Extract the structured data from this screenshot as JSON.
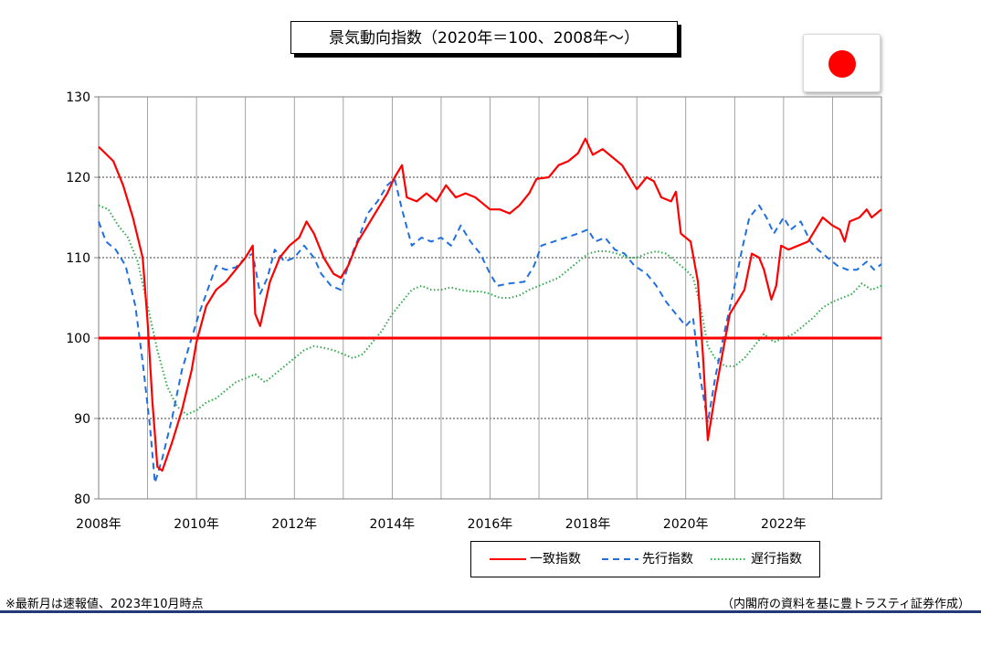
{
  "chart_data": {
    "type": "line",
    "title": "景気動向指数（2020年＝100、2008年～）",
    "xlabel": "",
    "ylabel": "",
    "ylim": [
      80,
      130
    ],
    "yticks": [
      80,
      90,
      100,
      110,
      120,
      130
    ],
    "xlim": [
      2008,
      2024
    ],
    "xticks": [
      2008,
      2010,
      2012,
      2014,
      2016,
      2018,
      2020,
      2022
    ],
    "xtick_labels": [
      "2008年",
      "2010年",
      "2012年",
      "2014年",
      "2016年",
      "2018年",
      "2020年",
      "2022年"
    ],
    "grid": "horizontal dotted at 90, 110, 120; vertical at each year",
    "reference_line": {
      "y": 100,
      "color": "#ff0000"
    },
    "legend_position": "bottom-right",
    "series": [
      {
        "name": "一致指数",
        "color": "#ff0000",
        "style": "solid",
        "points": [
          [
            2008.0,
            123.8
          ],
          [
            2008.3,
            122.0
          ],
          [
            2008.5,
            119.0
          ],
          [
            2008.7,
            115.0
          ],
          [
            2008.9,
            110.0
          ],
          [
            2009.0,
            102.0
          ],
          [
            2009.1,
            92.0
          ],
          [
            2009.2,
            84.0
          ],
          [
            2009.3,
            83.5
          ],
          [
            2009.5,
            87.0
          ],
          [
            2009.7,
            91.0
          ],
          [
            2009.9,
            96.0
          ],
          [
            2010.0,
            99.5
          ],
          [
            2010.2,
            104.0
          ],
          [
            2010.4,
            106.0
          ],
          [
            2010.6,
            107.0
          ],
          [
            2010.8,
            108.5
          ],
          [
            2011.0,
            110.0
          ],
          [
            2011.15,
            111.5
          ],
          [
            2011.2,
            103.0
          ],
          [
            2011.3,
            101.5
          ],
          [
            2011.5,
            107.0
          ],
          [
            2011.7,
            110.0
          ],
          [
            2011.9,
            111.5
          ],
          [
            2012.1,
            112.5
          ],
          [
            2012.25,
            114.5
          ],
          [
            2012.4,
            113.0
          ],
          [
            2012.6,
            110.0
          ],
          [
            2012.8,
            108.0
          ],
          [
            2012.95,
            107.5
          ],
          [
            2013.1,
            109.0
          ],
          [
            2013.3,
            112.0
          ],
          [
            2013.5,
            114.0
          ],
          [
            2013.7,
            116.0
          ],
          [
            2013.9,
            118.0
          ],
          [
            2014.05,
            120.0
          ],
          [
            2014.2,
            121.5
          ],
          [
            2014.3,
            117.5
          ],
          [
            2014.5,
            117.0
          ],
          [
            2014.7,
            118.0
          ],
          [
            2014.9,
            117.0
          ],
          [
            2015.1,
            119.0
          ],
          [
            2015.3,
            117.5
          ],
          [
            2015.5,
            118.0
          ],
          [
            2015.7,
            117.5
          ],
          [
            2015.9,
            116.5
          ],
          [
            2016.0,
            116.0
          ],
          [
            2016.2,
            116.0
          ],
          [
            2016.4,
            115.5
          ],
          [
            2016.6,
            116.5
          ],
          [
            2016.8,
            118.0
          ],
          [
            2016.95,
            119.8
          ],
          [
            2017.2,
            120.0
          ],
          [
            2017.4,
            121.5
          ],
          [
            2017.6,
            122.0
          ],
          [
            2017.8,
            123.0
          ],
          [
            2017.95,
            124.8
          ],
          [
            2018.1,
            122.8
          ],
          [
            2018.3,
            123.5
          ],
          [
            2018.5,
            122.5
          ],
          [
            2018.7,
            121.5
          ],
          [
            2018.85,
            120.0
          ],
          [
            2019.0,
            118.5
          ],
          [
            2019.2,
            120.0
          ],
          [
            2019.35,
            119.5
          ],
          [
            2019.5,
            117.5
          ],
          [
            2019.7,
            117.0
          ],
          [
            2019.8,
            118.2
          ],
          [
            2019.9,
            113.0
          ],
          [
            2020.1,
            112.0
          ],
          [
            2020.25,
            107.0
          ],
          [
            2020.35,
            98.0
          ],
          [
            2020.45,
            87.3
          ],
          [
            2020.6,
            93.0
          ],
          [
            2020.75,
            98.0
          ],
          [
            2020.9,
            103.0
          ],
          [
            2021.05,
            104.5
          ],
          [
            2021.2,
            106.0
          ],
          [
            2021.35,
            110.5
          ],
          [
            2021.5,
            110.0
          ],
          [
            2021.6,
            108.5
          ],
          [
            2021.75,
            104.8
          ],
          [
            2021.85,
            106.5
          ],
          [
            2021.95,
            111.5
          ],
          [
            2022.1,
            111.0
          ],
          [
            2022.3,
            111.5
          ],
          [
            2022.5,
            112.0
          ],
          [
            2022.65,
            113.5
          ],
          [
            2022.8,
            115.0
          ],
          [
            2023.0,
            114.0
          ],
          [
            2023.15,
            113.5
          ],
          [
            2023.25,
            112.0
          ],
          [
            2023.35,
            114.5
          ],
          [
            2023.55,
            115.0
          ],
          [
            2023.7,
            116.0
          ],
          [
            2023.8,
            115.0
          ],
          [
            2024.0,
            116.0
          ]
        ]
      },
      {
        "name": "先行指数",
        "color": "#1f6fe0",
        "style": "dashed",
        "points": [
          [
            2008.0,
            114.5
          ],
          [
            2008.15,
            112.0
          ],
          [
            2008.35,
            111.0
          ],
          [
            2008.55,
            109.0
          ],
          [
            2008.75,
            104.0
          ],
          [
            2008.9,
            97.0
          ],
          [
            2009.05,
            89.0
          ],
          [
            2009.15,
            82.0
          ],
          [
            2009.3,
            85.0
          ],
          [
            2009.5,
            90.0
          ],
          [
            2009.7,
            96.0
          ],
          [
            2009.9,
            100.0
          ],
          [
            2010.05,
            103.0
          ],
          [
            2010.2,
            105.5
          ],
          [
            2010.4,
            109.0
          ],
          [
            2010.6,
            108.5
          ],
          [
            2010.8,
            108.8
          ],
          [
            2011.0,
            110.0
          ],
          [
            2011.15,
            110.5
          ],
          [
            2011.3,
            105.5
          ],
          [
            2011.45,
            107.5
          ],
          [
            2011.6,
            111.0
          ],
          [
            2011.8,
            109.5
          ],
          [
            2012.0,
            110.0
          ],
          [
            2012.2,
            111.5
          ],
          [
            2012.4,
            110.0
          ],
          [
            2012.55,
            108.0
          ],
          [
            2012.75,
            106.5
          ],
          [
            2012.95,
            106.0
          ],
          [
            2013.15,
            110.0
          ],
          [
            2013.35,
            113.0
          ],
          [
            2013.5,
            115.5
          ],
          [
            2013.7,
            117.0
          ],
          [
            2013.9,
            119.0
          ],
          [
            2014.05,
            119.8
          ],
          [
            2014.2,
            116.0
          ],
          [
            2014.4,
            111.5
          ],
          [
            2014.6,
            112.5
          ],
          [
            2014.8,
            112.0
          ],
          [
            2015.0,
            112.5
          ],
          [
            2015.2,
            111.5
          ],
          [
            2015.4,
            114.0
          ],
          [
            2015.6,
            112.0
          ],
          [
            2015.8,
            110.5
          ],
          [
            2016.0,
            108.0
          ],
          [
            2016.15,
            106.5
          ],
          [
            2016.4,
            106.8
          ],
          [
            2016.7,
            107.0
          ],
          [
            2016.9,
            109.0
          ],
          [
            2017.05,
            111.5
          ],
          [
            2017.3,
            112.0
          ],
          [
            2017.55,
            112.5
          ],
          [
            2017.8,
            113.0
          ],
          [
            2018.0,
            113.5
          ],
          [
            2018.15,
            112.0
          ],
          [
            2018.35,
            112.5
          ],
          [
            2018.55,
            111.0
          ],
          [
            2018.75,
            110.5
          ],
          [
            2018.95,
            109.0
          ],
          [
            2019.2,
            108.0
          ],
          [
            2019.4,
            106.5
          ],
          [
            2019.6,
            104.5
          ],
          [
            2019.8,
            103.0
          ],
          [
            2020.0,
            101.5
          ],
          [
            2020.15,
            102.5
          ],
          [
            2020.3,
            95.0
          ],
          [
            2020.45,
            89.5
          ],
          [
            2020.6,
            95.0
          ],
          [
            2020.8,
            101.0
          ],
          [
            2021.0,
            106.5
          ],
          [
            2021.15,
            111.0
          ],
          [
            2021.3,
            115.0
          ],
          [
            2021.5,
            116.5
          ],
          [
            2021.65,
            115.0
          ],
          [
            2021.8,
            113.0
          ],
          [
            2022.0,
            115.0
          ],
          [
            2022.15,
            113.5
          ],
          [
            2022.35,
            114.5
          ],
          [
            2022.55,
            112.0
          ],
          [
            2022.7,
            111.0
          ],
          [
            2022.9,
            110.0
          ],
          [
            2023.1,
            109.0
          ],
          [
            2023.3,
            108.5
          ],
          [
            2023.5,
            108.5
          ],
          [
            2023.7,
            109.5
          ],
          [
            2023.85,
            108.5
          ],
          [
            2024.0,
            109.2
          ]
        ]
      },
      {
        "name": "遅行指数",
        "color": "#2eaa4a",
        "style": "dotted",
        "points": [
          [
            2008.0,
            116.5
          ],
          [
            2008.2,
            116.0
          ],
          [
            2008.4,
            114.0
          ],
          [
            2008.6,
            112.5
          ],
          [
            2008.8,
            109.5
          ],
          [
            2009.0,
            104.0
          ],
          [
            2009.2,
            98.5
          ],
          [
            2009.4,
            94.0
          ],
          [
            2009.6,
            91.5
          ],
          [
            2009.8,
            90.5
          ],
          [
            2010.0,
            91.0
          ],
          [
            2010.2,
            92.0
          ],
          [
            2010.4,
            92.5
          ],
          [
            2010.6,
            93.5
          ],
          [
            2010.8,
            94.5
          ],
          [
            2011.0,
            95.0
          ],
          [
            2011.2,
            95.5
          ],
          [
            2011.4,
            94.5
          ],
          [
            2011.6,
            95.5
          ],
          [
            2011.8,
            96.5
          ],
          [
            2012.0,
            97.5
          ],
          [
            2012.2,
            98.5
          ],
          [
            2012.4,
            99.0
          ],
          [
            2012.6,
            98.8
          ],
          [
            2012.8,
            98.5
          ],
          [
            2013.0,
            98.0
          ],
          [
            2013.2,
            97.5
          ],
          [
            2013.4,
            98.0
          ],
          [
            2013.6,
            99.5
          ],
          [
            2013.8,
            101.0
          ],
          [
            2014.0,
            103.0
          ],
          [
            2014.2,
            104.5
          ],
          [
            2014.4,
            106.0
          ],
          [
            2014.6,
            106.5
          ],
          [
            2014.8,
            106.0
          ],
          [
            2015.0,
            106.0
          ],
          [
            2015.2,
            106.3
          ],
          [
            2015.4,
            106.0
          ],
          [
            2015.6,
            105.8
          ],
          [
            2015.8,
            105.8
          ],
          [
            2016.0,
            105.5
          ],
          [
            2016.2,
            105.0
          ],
          [
            2016.4,
            105.0
          ],
          [
            2016.6,
            105.3
          ],
          [
            2016.8,
            106.0
          ],
          [
            2017.0,
            106.5
          ],
          [
            2017.2,
            107.0
          ],
          [
            2017.4,
            107.5
          ],
          [
            2017.6,
            108.5
          ],
          [
            2017.8,
            109.5
          ],
          [
            2018.0,
            110.5
          ],
          [
            2018.2,
            110.8
          ],
          [
            2018.4,
            110.8
          ],
          [
            2018.6,
            110.5
          ],
          [
            2018.8,
            110.0
          ],
          [
            2019.0,
            110.0
          ],
          [
            2019.2,
            110.5
          ],
          [
            2019.4,
            110.8
          ],
          [
            2019.6,
            110.5
          ],
          [
            2019.8,
            109.5
          ],
          [
            2020.0,
            108.5
          ],
          [
            2020.15,
            107.5
          ],
          [
            2020.3,
            104.0
          ],
          [
            2020.45,
            99.0
          ],
          [
            2020.6,
            97.5
          ],
          [
            2020.8,
            96.5
          ],
          [
            2021.0,
            96.5
          ],
          [
            2021.2,
            97.5
          ],
          [
            2021.4,
            99.0
          ],
          [
            2021.6,
            100.5
          ],
          [
            2021.8,
            99.5
          ],
          [
            2022.0,
            100.0
          ],
          [
            2022.2,
            100.5
          ],
          [
            2022.4,
            101.5
          ],
          [
            2022.6,
            102.5
          ],
          [
            2022.8,
            103.8
          ],
          [
            2023.0,
            104.5
          ],
          [
            2023.2,
            105.0
          ],
          [
            2023.4,
            105.5
          ],
          [
            2023.6,
            106.8
          ],
          [
            2023.8,
            106.0
          ],
          [
            2024.0,
            106.5
          ]
        ]
      }
    ]
  },
  "notes": {
    "left": "※最新月は速報値、2023年10月時点",
    "right": "（内閣府の資料を基に豊トラスティ証券作成）"
  }
}
